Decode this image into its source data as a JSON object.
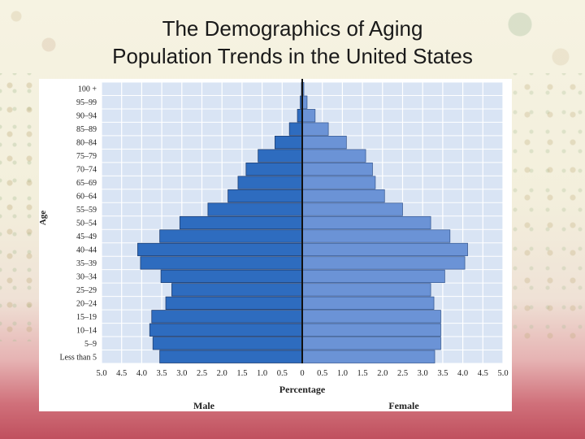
{
  "slide": {
    "title_line1": "The Demographics of Aging",
    "title_line2": "Population Trends in the United States"
  },
  "colors": {
    "male": "#2e6cbf",
    "female": "#6b93d6",
    "plot_bg": "#d9e4f4",
    "grid": "#ffffff"
  },
  "chart_data": {
    "type": "bar",
    "orientation": "horizontal-population-pyramid",
    "title": "",
    "xlabel": "Percentage",
    "ylabel": "Age",
    "xlim": [
      -5.0,
      5.0
    ],
    "x_ticks": [
      "5.0",
      "4.5",
      "4.0",
      "3.5",
      "3.0",
      "2.5",
      "2.0",
      "1.5",
      "1.0",
      "0.5",
      "0",
      "0.5",
      "1.0",
      "1.5",
      "2.0",
      "2.5",
      "3.0",
      "3.5",
      "4.0",
      "4.5",
      "5.0"
    ],
    "categories": [
      "100 +",
      "95–99",
      "90–94",
      "85–89",
      "80–84",
      "75–79",
      "70–74",
      "65–69",
      "60–64",
      "55–59",
      "50–54",
      "45–49",
      "40–44",
      "35–39",
      "30–34",
      "25–29",
      "20–24",
      "15–19",
      "10–14",
      "5–9",
      "Less than 5"
    ],
    "series": [
      {
        "name": "Male",
        "values": [
          0.02,
          0.05,
          0.12,
          0.32,
          0.68,
          1.1,
          1.4,
          1.6,
          1.85,
          2.35,
          3.05,
          3.55,
          4.1,
          4.03,
          3.52,
          3.25,
          3.4,
          3.75,
          3.8,
          3.72,
          3.55
        ]
      },
      {
        "name": "Female",
        "values": [
          0.04,
          0.12,
          0.32,
          0.65,
          1.1,
          1.58,
          1.75,
          1.82,
          2.05,
          2.5,
          3.2,
          3.68,
          4.12,
          4.05,
          3.55,
          3.2,
          3.28,
          3.45,
          3.45,
          3.45,
          3.3
        ]
      }
    ],
    "group_labels": {
      "left": "Male",
      "right": "Female"
    }
  }
}
